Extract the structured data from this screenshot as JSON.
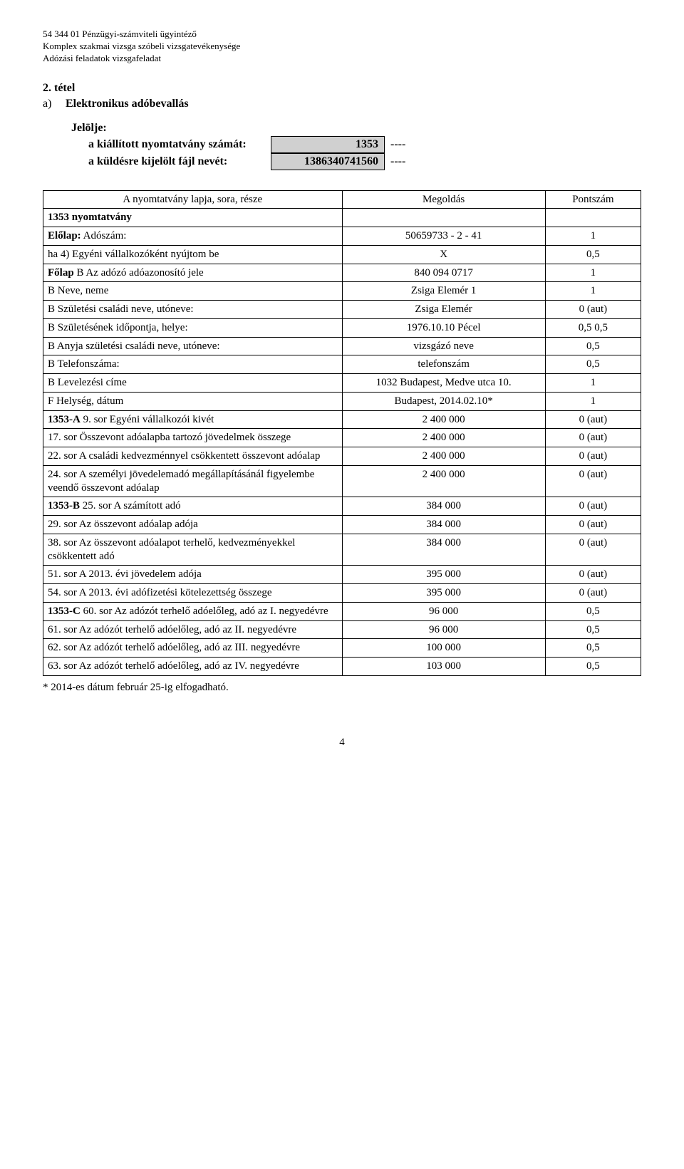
{
  "header": {
    "line1": "54 344 01 Pénzügyi-számviteli ügyintéző",
    "line2": "Komplex szakmai vizsga szóbeli vizsgatevékenysége",
    "line3": "Adózási feladatok vizsgafeladat"
  },
  "tetel": "2. tétel",
  "part_a": {
    "label": "a)",
    "text": "Elektronikus adóbevallás"
  },
  "jelolje": {
    "title": "Jelölje:",
    "rows": [
      {
        "label": "a kiállított nyomtatvány számát:",
        "value": "1353",
        "dashes": "----"
      },
      {
        "label": "a küldésre kijelölt fájl nevét:",
        "value": "1386340741560",
        "dashes": "----"
      }
    ]
  },
  "table": {
    "head": {
      "c1": "A nyomtatvány lapja, sora, része",
      "c2": "Megoldás",
      "c3": "Pontszám"
    },
    "rows": [
      {
        "c1": "1353 nyomtatvány",
        "c2": "",
        "c3": "",
        "bold": true
      },
      {
        "c1": "Előlap:   Adószám:",
        "c2": "50659733 - 2 - 41",
        "c3": "1",
        "bold1_prefix": true
      },
      {
        "c1": "ha 4) Egyéni vállalkozóként nyújtom be",
        "c2": "X",
        "c3": "0,5"
      },
      {
        "c1": "Főlap B  Az adózó adóazonosító jele",
        "c2": "840 094 0717",
        "c3": "1",
        "bold1_prefix": true
      },
      {
        "c1": "B  Neve, neme",
        "c2": "Zsiga Elemér     1",
        "c3": "1"
      },
      {
        "c1": "B  Születési családi neve, utóneve:",
        "c2": "Zsiga Elemér",
        "c3": "0 (aut)"
      },
      {
        "c1": "B  Születésének időpontja, helye:",
        "c2": "1976.10.10      Pécel",
        "c3": "0,5  0,5"
      },
      {
        "c1": "B  Anyja születési családi neve, utóneve:",
        "c2": "vizsgázó neve",
        "c3": "0,5"
      },
      {
        "c1": "B  Telefonszáma:",
        "c2": "telefonszám",
        "c3": "0,5"
      },
      {
        "c1": "B  Levelezési címe",
        "c2": "1032 Budapest, Medve utca 10.",
        "c3": "1"
      },
      {
        "c1": "F  Helység, dátum",
        "c2": "Budapest, 2014.02.10*",
        "c3": "1"
      },
      {
        "c1": "1353-A  9. sor Egyéni vállalkozói kivét",
        "c2": "2 400 000",
        "c3": "0 (aut)",
        "bold1_prefix": true
      },
      {
        "c1": "17. sor  Összevont adóalapba tartozó jövedelmek összege",
        "c2": "2 400 000",
        "c3": "0 (aut)"
      },
      {
        "c1": "22. sor  A családi kedvezménnyel csökkentett összevont adóalap",
        "c2": "2 400 000",
        "c3": "0 (aut)"
      },
      {
        "c1": "24. sor  A személyi jövedelemadó megállapításánál figyelembe veendő összevont adóalap",
        "c2": "2 400 000",
        "c3": "0 (aut)"
      },
      {
        "c1": "1353-B  25. sor  A számított adó",
        "c2": "384 000",
        "c3": "0 (aut)",
        "bold1_prefix": true
      },
      {
        "c1": "29. sor  Az összevont adóalap adója",
        "c2": "384 000",
        "c3": "0 (aut)"
      },
      {
        "c1": "38. sor  Az összevont adóalapot terhelő, kedvezményekkel csökkentett adó",
        "c2": "384 000",
        "c3": "0 (aut)"
      },
      {
        "c1": "51. sor  A 2013. évi jövedelem adója",
        "c2": "395 000",
        "c3": "0 (aut)"
      },
      {
        "c1": "54. sor  A 2013. évi adófizetési kötelezettség összege",
        "c2": "395 000",
        "c3": "0 (aut)"
      },
      {
        "c1": "1353-C  60. sor  Az adózót terhelő adóelőleg, adó az I. negyedévre",
        "c2": "96 000",
        "c3": "0,5",
        "bold1_prefix": true
      },
      {
        "c1": "61. sor  Az adózót terhelő adóelőleg, adó az II. negyedévre",
        "c2": "96 000",
        "c3": "0,5"
      },
      {
        "c1": "62. sor  Az adózót terhelő adóelőleg, adó az III. negyedévre",
        "c2": "100 000",
        "c3": "0,5"
      },
      {
        "c1": "63. sor  Az adózót terhelő adóelőleg, adó az IV. negyedévre",
        "c2": "103 000",
        "c3": "0,5"
      }
    ]
  },
  "footnote": "* 2014-es dátum február 25-ig elfogadható.",
  "page_number": "4"
}
